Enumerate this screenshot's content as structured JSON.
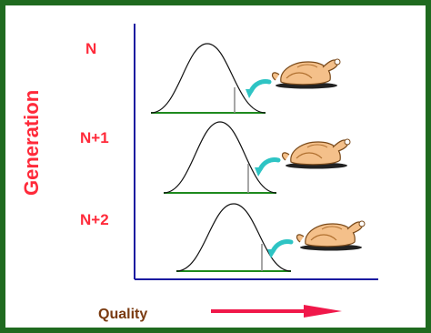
{
  "y_axis_title": "Generation",
  "x_axis_title": "Quality",
  "generations": [
    {
      "label": "N"
    },
    {
      "label": "N+1"
    },
    {
      "label": "N+2"
    }
  ],
  "colors": {
    "border": "#1f6a1f",
    "label_red": "#ff2a3a",
    "axis_blue": "#1a1aa0",
    "baseline_green": "#1e8a1e",
    "selection_arrow": "#2ec4c4",
    "quality_arrow": "#f0184a",
    "quality_text": "#7a3a10"
  },
  "icons": {
    "selected_item": "roast-chicken-icon",
    "selection_pointer": "curved-arrow-icon"
  }
}
